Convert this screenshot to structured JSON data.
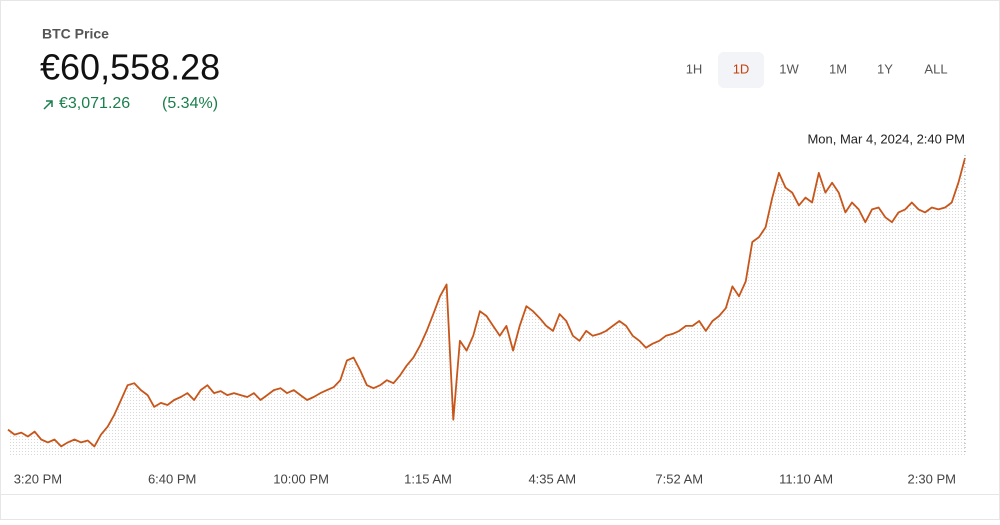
{
  "header": {
    "label": "BTC Price",
    "price": "€60,558.28",
    "change": "€3,071.26",
    "change_pct": "(5.34%)"
  },
  "timeframes": {
    "options": [
      "1H",
      "1D",
      "1W",
      "1M",
      "1Y",
      "ALL"
    ],
    "selected": 1
  },
  "chart_data": {
    "type": "line",
    "annotation": "Mon, Mar 4, 2024, 2:40 PM",
    "xlim": [
      0,
      144
    ],
    "xticks": [
      {
        "value": 4.5,
        "label": "3:20 PM"
      },
      {
        "value": 24.7,
        "label": "6:40 PM"
      },
      {
        "value": 44.1,
        "label": "10:00 PM"
      },
      {
        "value": 63.2,
        "label": "1:15 AM"
      },
      {
        "value": 81.9,
        "label": "4:35 AM"
      },
      {
        "value": 101,
        "label": "7:52 AM"
      },
      {
        "value": 120.1,
        "label": "11:10 AM"
      },
      {
        "value": 139,
        "label": "2:30 PM"
      }
    ],
    "ylim": [
      57200,
      60650
    ],
    "grid": false,
    "series": [
      {
        "name": "BTC Price",
        "color": "#c8561b",
        "values": [
          57487,
          57431,
          57453,
          57409,
          57465,
          57375,
          57342,
          57375,
          57297,
          57342,
          57375,
          57342,
          57364,
          57297,
          57431,
          57521,
          57655,
          57822,
          57990,
          58012,
          57934,
          57878,
          57744,
          57789,
          57766,
          57822,
          57856,
          57900,
          57822,
          57934,
          57990,
          57900,
          57923,
          57878,
          57900,
          57878,
          57856,
          57900,
          57822,
          57878,
          57934,
          57956,
          57900,
          57934,
          57878,
          57822,
          57856,
          57900,
          57934,
          57967,
          58046,
          58269,
          58302,
          58157,
          57990,
          57956,
          57990,
          58046,
          58012,
          58101,
          58213,
          58302,
          58436,
          58604,
          58794,
          58995,
          59129,
          57599,
          58492,
          58381,
          58548,
          58827,
          58772,
          58660,
          58548,
          58660,
          58381,
          58660,
          58883,
          58827,
          58749,
          58660,
          58604,
          58794,
          58716,
          58548,
          58492,
          58604,
          58548,
          58570,
          58604,
          58660,
          58716,
          58660,
          58548,
          58492,
          58414,
          58459,
          58492,
          58548,
          58570,
          58604,
          58660,
          58660,
          58716,
          58604,
          58716,
          58772,
          58861,
          59107,
          58995,
          59163,
          59609,
          59665,
          59777,
          60112,
          60391,
          60224,
          60168,
          60023,
          60112,
          60056,
          60391,
          60168,
          60280,
          60168,
          59944,
          60056,
          59978,
          59833,
          59978,
          60000,
          59889,
          59833,
          59944,
          59978,
          60056,
          59978,
          59944,
          60000,
          59978,
          60000,
          60056,
          60280,
          60558.28
        ]
      }
    ]
  }
}
